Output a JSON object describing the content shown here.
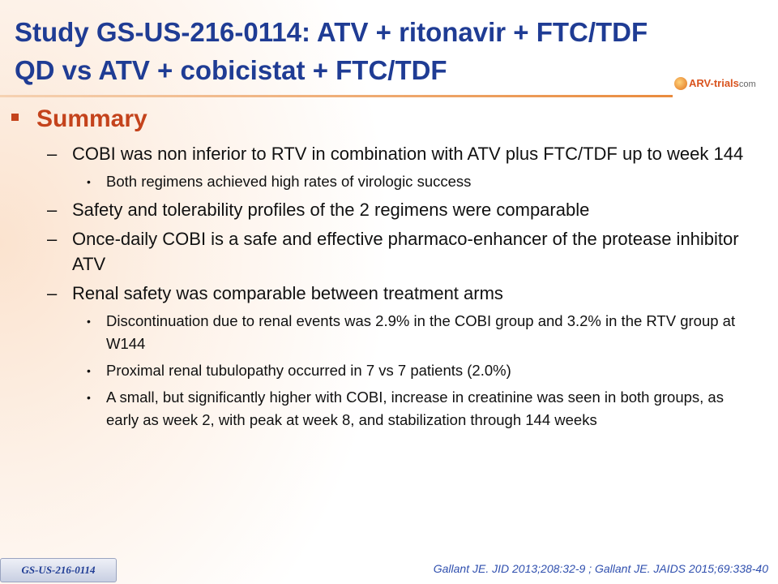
{
  "header": {
    "title_lines": [
      "Study GS-US-216-0114: ATV + ritonavir + FTC/TDF",
      "QD vs ATV + cobicistat + FTC/TDF"
    ],
    "logo": {
      "main": "ARV-trials",
      "suffix": "com"
    }
  },
  "summary": {
    "heading": "Summary",
    "items": [
      {
        "level": 1,
        "text": "COBI was non inferior to RTV in combination with ATV plus FTC/TDF up to week 144"
      },
      {
        "level": 2,
        "text": "Both regimens achieved high rates of virologic success"
      },
      {
        "level": 1,
        "text": "Safety and tolerability profiles of the 2 regimens were comparable"
      },
      {
        "level": 1,
        "text": "Once-daily COBI is a safe and effective pharmaco-enhancer of the protease inhibitor ATV"
      },
      {
        "level": 1,
        "text": "Renal safety was comparable between treatment arms"
      },
      {
        "level": 2,
        "text": "Discontinuation due to renal events was 2.9% in the COBI group and 3.2% in the RTV group at W144"
      },
      {
        "level": 2,
        "text": "Proximal renal tubulopathy occurred in 7 vs 7 patients (2.0%)"
      },
      {
        "level": 2,
        "text": "A small, but significantly higher with COBI, increase in creatinine was seen in both groups, as early as week 2, with peak at week 8, and stabilization through 144 weeks"
      }
    ]
  },
  "footer": {
    "tag": "GS-US-216-0114",
    "citation": "Gallant JE. JID 2013;208:32-9 ; Gallant JE. JAIDS 2015;69:338-40"
  }
}
